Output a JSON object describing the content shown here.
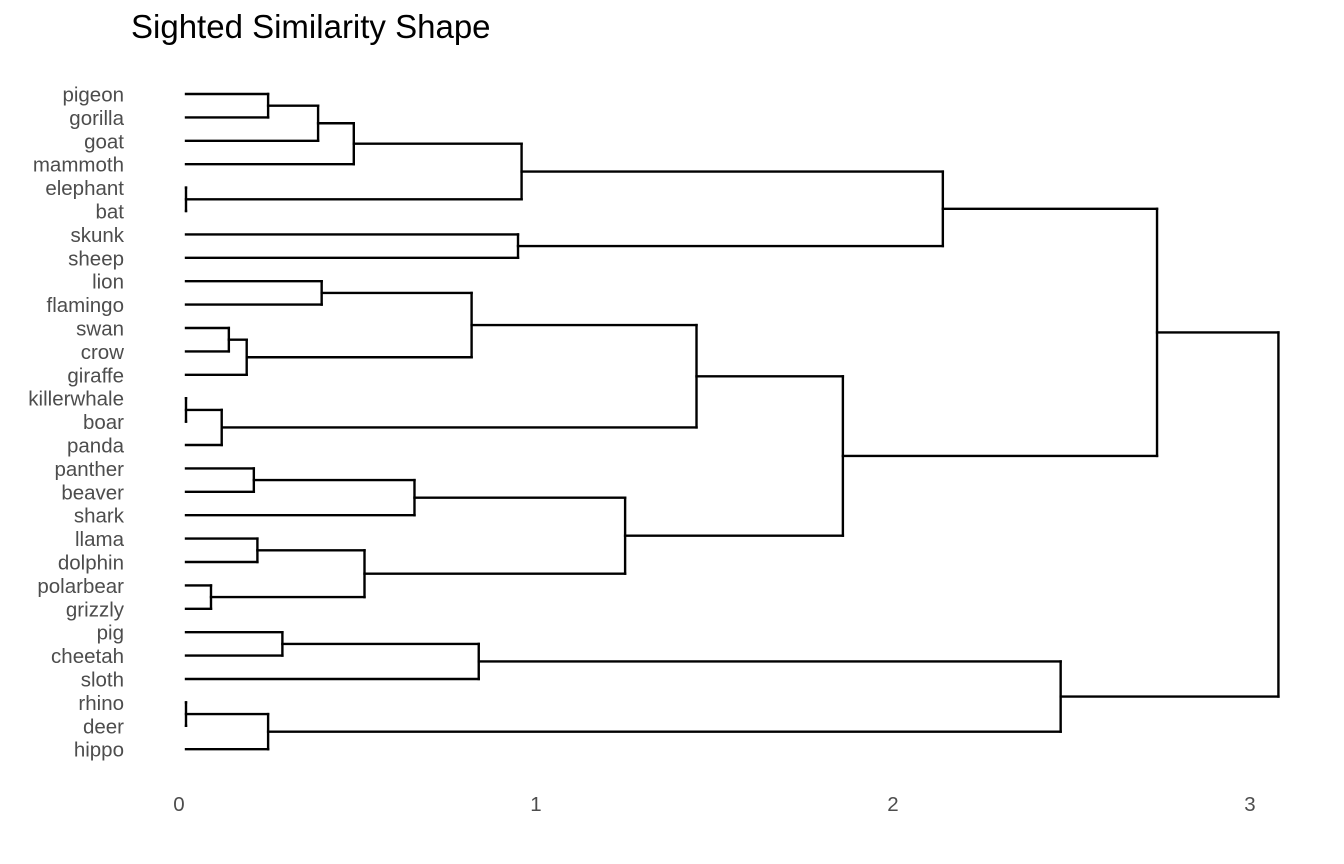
{
  "chart_data": {
    "type": "dendrogram",
    "title": "Sighted Similarity Shape",
    "orientation": "horizontal",
    "xlim": [
      0,
      3.06
    ],
    "x_ticks": [
      0,
      1,
      2,
      3
    ],
    "grid": false,
    "leaves": [
      "pigeon",
      "gorilla",
      "goat",
      "mammoth",
      "elephant",
      "bat",
      "skunk",
      "sheep",
      "lion",
      "flamingo",
      "swan",
      "crow",
      "giraffe",
      "killerwhale",
      "boar",
      "panda",
      "panther",
      "beaver",
      "shark",
      "llama",
      "dolphin",
      "polarbear",
      "grizzly",
      "pig",
      "cheetah",
      "sloth",
      "rhino",
      "deer",
      "hippo"
    ],
    "merges": [
      {
        "id": "m1",
        "children": [
          "pigeon",
          "gorilla"
        ],
        "height": 0.23
      },
      {
        "id": "m2",
        "children": [
          "m1",
          "goat"
        ],
        "height": 0.37
      },
      {
        "id": "m3",
        "children": [
          "m2",
          "mammoth"
        ],
        "height": 0.47
      },
      {
        "id": "m4",
        "children": [
          "elephant",
          "bat"
        ],
        "height": 0.0
      },
      {
        "id": "m5",
        "children": [
          "m3",
          "m4"
        ],
        "height": 0.94
      },
      {
        "id": "m6",
        "children": [
          "skunk",
          "sheep"
        ],
        "height": 0.93
      },
      {
        "id": "m7",
        "children": [
          "m5",
          "m6"
        ],
        "height": 2.12
      },
      {
        "id": "m8",
        "children": [
          "lion",
          "flamingo"
        ],
        "height": 0.38
      },
      {
        "id": "m9",
        "children": [
          "swan",
          "crow"
        ],
        "height": 0.12
      },
      {
        "id": "m10",
        "children": [
          "m9",
          "giraffe"
        ],
        "height": 0.17
      },
      {
        "id": "m11",
        "children": [
          "m8",
          "m10"
        ],
        "height": 0.8
      },
      {
        "id": "m12",
        "children": [
          "killerwhale",
          "boar"
        ],
        "height": 0.0
      },
      {
        "id": "m13",
        "children": [
          "m12",
          "panda"
        ],
        "height": 0.1
      },
      {
        "id": "m14",
        "children": [
          "m11",
          "m13"
        ],
        "height": 1.43
      },
      {
        "id": "m15",
        "children": [
          "panther",
          "beaver"
        ],
        "height": 0.19
      },
      {
        "id": "m16",
        "children": [
          "m15",
          "shark"
        ],
        "height": 0.64
      },
      {
        "id": "m17",
        "children": [
          "llama",
          "dolphin"
        ],
        "height": 0.2
      },
      {
        "id": "m18",
        "children": [
          "polarbear",
          "grizzly"
        ],
        "height": 0.07
      },
      {
        "id": "m19",
        "children": [
          "m17",
          "m18"
        ],
        "height": 0.5
      },
      {
        "id": "m20",
        "children": [
          "m16",
          "m19"
        ],
        "height": 1.23
      },
      {
        "id": "m21",
        "children": [
          "m14",
          "m20"
        ],
        "height": 1.84
      },
      {
        "id": "m22",
        "children": [
          "m7",
          "m21"
        ],
        "height": 2.72
      },
      {
        "id": "m23",
        "children": [
          "pig",
          "cheetah"
        ],
        "height": 0.27
      },
      {
        "id": "m24",
        "children": [
          "m23",
          "sloth"
        ],
        "height": 0.82
      },
      {
        "id": "m25",
        "children": [
          "rhino",
          "deer"
        ],
        "height": 0.0
      },
      {
        "id": "m26",
        "children": [
          "m25",
          "hippo"
        ],
        "height": 0.23
      },
      {
        "id": "m27",
        "children": [
          "m24",
          "m26"
        ],
        "height": 2.45
      },
      {
        "id": "m28",
        "children": [
          "m22",
          "m27"
        ],
        "height": 3.06
      }
    ]
  },
  "colors": {
    "background": "#ffffff",
    "lines": "#000000",
    "labels": "#4d4d4d",
    "title": "#000000"
  }
}
